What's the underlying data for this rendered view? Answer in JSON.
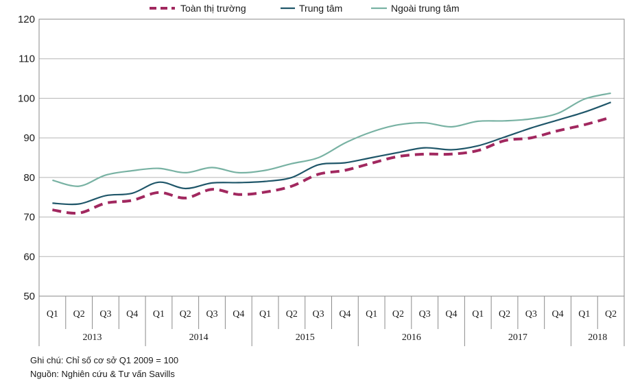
{
  "chart_data": {
    "type": "line",
    "title": "",
    "xlabel": "",
    "ylabel": "",
    "ylim": [
      50,
      120
    ],
    "yticks": [
      50,
      60,
      70,
      80,
      90,
      100,
      110,
      120
    ],
    "grid": true,
    "legend_position": "top",
    "quarters": [
      "Q1",
      "Q2",
      "Q3",
      "Q4",
      "Q1",
      "Q2",
      "Q3",
      "Q4",
      "Q1",
      "Q2",
      "Q3",
      "Q4",
      "Q1",
      "Q2",
      "Q3",
      "Q4",
      "Q1",
      "Q2",
      "Q3",
      "Q4",
      "Q1",
      "Q2"
    ],
    "years": [
      {
        "label": "2013",
        "span": 4
      },
      {
        "label": "2014",
        "span": 4
      },
      {
        "label": "2015",
        "span": 4
      },
      {
        "label": "2016",
        "span": 4
      },
      {
        "label": "2017",
        "span": 4
      },
      {
        "label": "2018",
        "span": 2
      }
    ],
    "series": [
      {
        "name": "Toàn thị trường",
        "color": "#a1285f",
        "style": "dashed",
        "values": [
          71.8,
          71.0,
          73.5,
          74.2,
          76.2,
          74.8,
          77.0,
          75.7,
          76.3,
          77.8,
          80.8,
          81.8,
          83.6,
          85.3,
          85.9,
          85.9,
          86.8,
          89.3,
          90.0,
          91.8,
          93.3,
          95.2
        ]
      },
      {
        "name": "Trung tâm",
        "color": "#1f5669",
        "style": "solid",
        "values": [
          73.5,
          73.3,
          75.4,
          76.0,
          78.8,
          77.2,
          78.6,
          78.7,
          79.0,
          80.0,
          83.2,
          83.7,
          85.0,
          86.3,
          87.5,
          87.0,
          88.0,
          90.2,
          92.5,
          94.5,
          96.5,
          99.0
        ]
      },
      {
        "name": "Ngoài trung tâm",
        "color": "#78b2a3",
        "style": "solid",
        "values": [
          79.3,
          77.8,
          80.6,
          81.7,
          82.3,
          81.2,
          82.5,
          81.2,
          81.8,
          83.5,
          85.0,
          88.7,
          91.5,
          93.3,
          93.8,
          92.8,
          94.2,
          94.3,
          94.8,
          96.2,
          99.8,
          101.3
        ]
      }
    ]
  },
  "notes": {
    "line1": "Ghi chú: Chỉ số cơ sở Q1 2009 = 100",
    "line2": "Nguồn: Nghiên cứu & Tư vấn Savills"
  }
}
